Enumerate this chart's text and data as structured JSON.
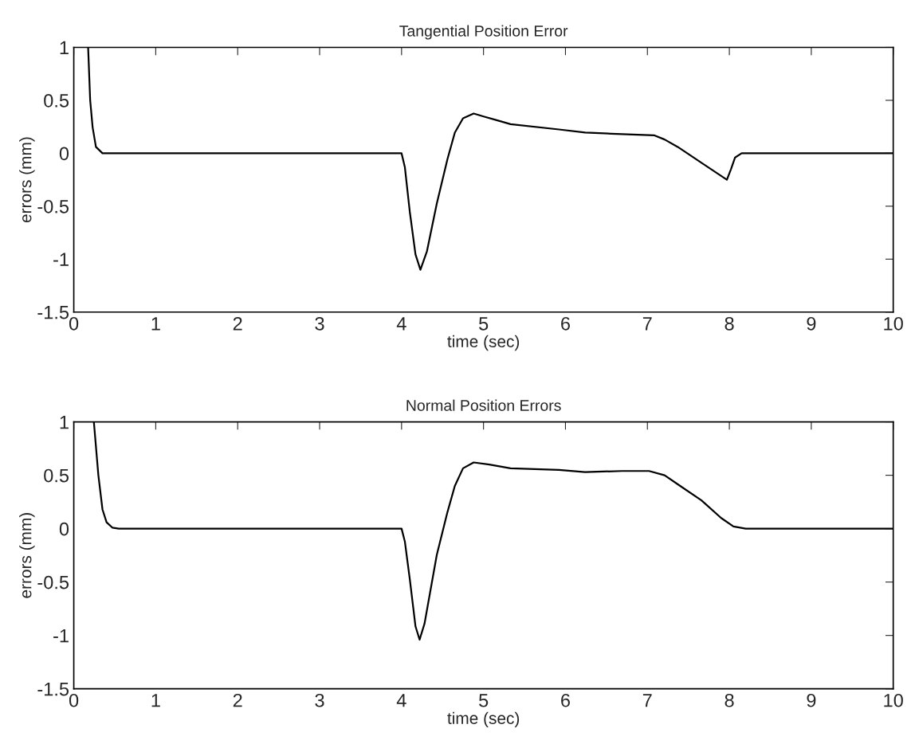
{
  "chart_data": [
    {
      "type": "line",
      "title": "Tangential Position Error",
      "xlabel": "time (sec)",
      "ylabel": "errors (mm)",
      "series": [
        {
          "color": "#000000",
          "x": [
            0.175,
            0.2,
            0.23,
            0.27,
            0.35,
            4.0,
            4.04,
            4.1,
            4.17,
            4.23,
            4.31,
            4.43,
            4.56,
            4.65,
            4.75,
            4.88,
            5.01,
            5.17,
            5.33,
            5.92,
            6.24,
            6.56,
            7.08,
            7.21,
            7.37,
            7.66,
            7.97,
            8.02,
            8.07,
            8.15,
            8.3,
            10.0
          ],
          "values": [
            1.0,
            0.5,
            0.245,
            0.06,
            0.0,
            0.0,
            -0.13,
            -0.55,
            -0.955,
            -1.1,
            -0.925,
            -0.475,
            -0.055,
            0.195,
            0.33,
            0.375,
            0.345,
            0.31,
            0.275,
            0.225,
            0.195,
            0.185,
            0.17,
            0.13,
            0.06,
            -0.09,
            -0.25,
            -0.15,
            -0.04,
            0.0,
            0.0,
            0.0
          ]
        }
      ],
      "xlim": [
        0,
        10
      ],
      "xticks": [
        0,
        1,
        2,
        3,
        4,
        5,
        6,
        7,
        8,
        9,
        10
      ],
      "ylim": [
        -1.5,
        1
      ],
      "yticks": [
        -1.5,
        -1,
        -0.5,
        0,
        0.5,
        1
      ]
    },
    {
      "type": "line",
      "title": "Normal Position Errors",
      "xlabel": "time (sec)",
      "ylabel": "errors (mm)",
      "series": [
        {
          "color": "#000000",
          "x": [
            0.245,
            0.3,
            0.35,
            0.4,
            0.47,
            0.55,
            4.0,
            4.04,
            4.1,
            4.17,
            4.22,
            4.28,
            4.43,
            4.56,
            4.65,
            4.75,
            4.88,
            5.07,
            5.33,
            5.92,
            6.24,
            6.69,
            7.02,
            7.21,
            7.4,
            7.66,
            7.9,
            8.05,
            8.2,
            10.0
          ],
          "values": [
            1.0,
            0.5,
            0.18,
            0.06,
            0.01,
            0.0,
            0.0,
            -0.12,
            -0.47,
            -0.915,
            -1.04,
            -0.89,
            -0.245,
            0.155,
            0.4,
            0.565,
            0.62,
            0.6,
            0.565,
            0.55,
            0.53,
            0.54,
            0.54,
            0.5,
            0.4,
            0.265,
            0.1,
            0.02,
            0.0,
            0.0
          ]
        }
      ],
      "xlim": [
        0,
        10
      ],
      "xticks": [
        0,
        1,
        2,
        3,
        4,
        5,
        6,
        7,
        8,
        9,
        10
      ],
      "ylim": [
        -1.5,
        1
      ],
      "yticks": [
        -1.5,
        -1,
        -0.5,
        0,
        0.5,
        1
      ]
    }
  ]
}
